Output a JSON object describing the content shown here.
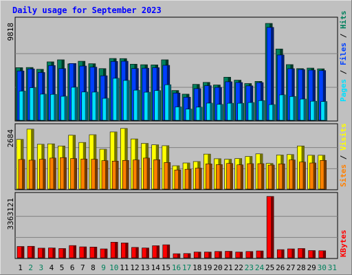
{
  "chart_data": {
    "type": "bar",
    "title": "Daily usage for September 2023",
    "days": [
      "1",
      "2",
      "3",
      "4",
      "5",
      "6",
      "7",
      "8",
      "9",
      "10",
      "11",
      "12",
      "13",
      "14",
      "15",
      "16",
      "17",
      "18",
      "19",
      "20",
      "21",
      "22",
      "23",
      "24",
      "25",
      "26",
      "27",
      "28",
      "29",
      "30",
      "31"
    ],
    "weekend_days": [
      "2",
      "3",
      "9",
      "10",
      "16",
      "17",
      "23",
      "24",
      "30",
      "31"
    ],
    "panels": [
      {
        "name": "Hits / Files / Pages",
        "axis_max_label": "9818",
        "ymax": 9818,
        "series": [
          {
            "name": "Hits",
            "color": "#00805C",
            "values": [
              5150,
              5170,
              4990,
              5720,
              5920,
              5520,
              5780,
              5540,
              5060,
              6050,
              6040,
              5490,
              5440,
              5420,
              5920,
              2920,
              2560,
              3520,
              3710,
              3460,
              4220,
              3930,
              3600,
              3810,
              9480,
              6980,
              5450,
              5060,
              5110,
              5040
            ]
          },
          {
            "name": "Files",
            "color": "#0040FF",
            "values": [
              4830,
              5030,
              4680,
              5360,
              5060,
              5560,
              5310,
              5200,
              4360,
              5760,
              5780,
              5070,
              5100,
              5150,
              5380,
              2670,
              2260,
              3100,
              3390,
              3220,
              3770,
              3700,
              3370,
              3690,
              9090,
              6390,
              5050,
              4970,
              4910,
              4870
            ]
          },
          {
            "name": "Pages",
            "color": "#00E0FF",
            "values": [
              2860,
              3190,
              2560,
              2540,
              2350,
              3230,
              2770,
              2760,
              2150,
              4110,
              3900,
              2950,
              2750,
              2910,
              3480,
              1310,
              1100,
              1290,
              1680,
              1560,
              1670,
              1670,
              1740,
              1930,
              1540,
              2490,
              2330,
              2080,
              1870,
              1840
            ]
          }
        ]
      },
      {
        "name": "Visits / Sites",
        "axis_max_label": "2684",
        "ymax": 2684,
        "series": [
          {
            "name": "Visits",
            "color": "#FFFF00",
            "values": [
              2130,
              2570,
              1920,
              1940,
              1850,
              2310,
              2000,
              2330,
              1710,
              2450,
              2600,
              2150,
              1960,
              1900,
              1860,
              1000,
              1120,
              1180,
              1500,
              1300,
              1280,
              1310,
              1400,
              1510,
              1100,
              1460,
              1480,
              1850,
              1450,
              1450
            ]
          },
          {
            "name": "Sites",
            "color": "#FF8000",
            "values": [
              1270,
              1240,
              1280,
              1330,
              1350,
              1310,
              1290,
              1280,
              1220,
              1200,
              1230,
              1250,
              1330,
              1260,
              1140,
              820,
              850,
              900,
              1080,
              1050,
              1100,
              1040,
              1090,
              1090,
              1030,
              1080,
              1250,
              1160,
              1120,
              1230
            ]
          }
        ]
      },
      {
        "name": "KBytes",
        "axis_max_label": "3363121",
        "ymax": 3363121,
        "series": [
          {
            "name": "KBytes",
            "color": "#FF0000",
            "values": [
              610000,
              620000,
              520000,
              530000,
              500000,
              660000,
              590000,
              580000,
              480000,
              840000,
              800000,
              560000,
              530000,
              650000,
              700000,
              220000,
              230000,
              310000,
              310000,
              340000,
              350000,
              310000,
              340000,
              370000,
              3300000,
              440000,
              480000,
              500000,
              390000,
              380000
            ]
          }
        ]
      }
    ],
    "grid": true,
    "legend": "right"
  }
}
